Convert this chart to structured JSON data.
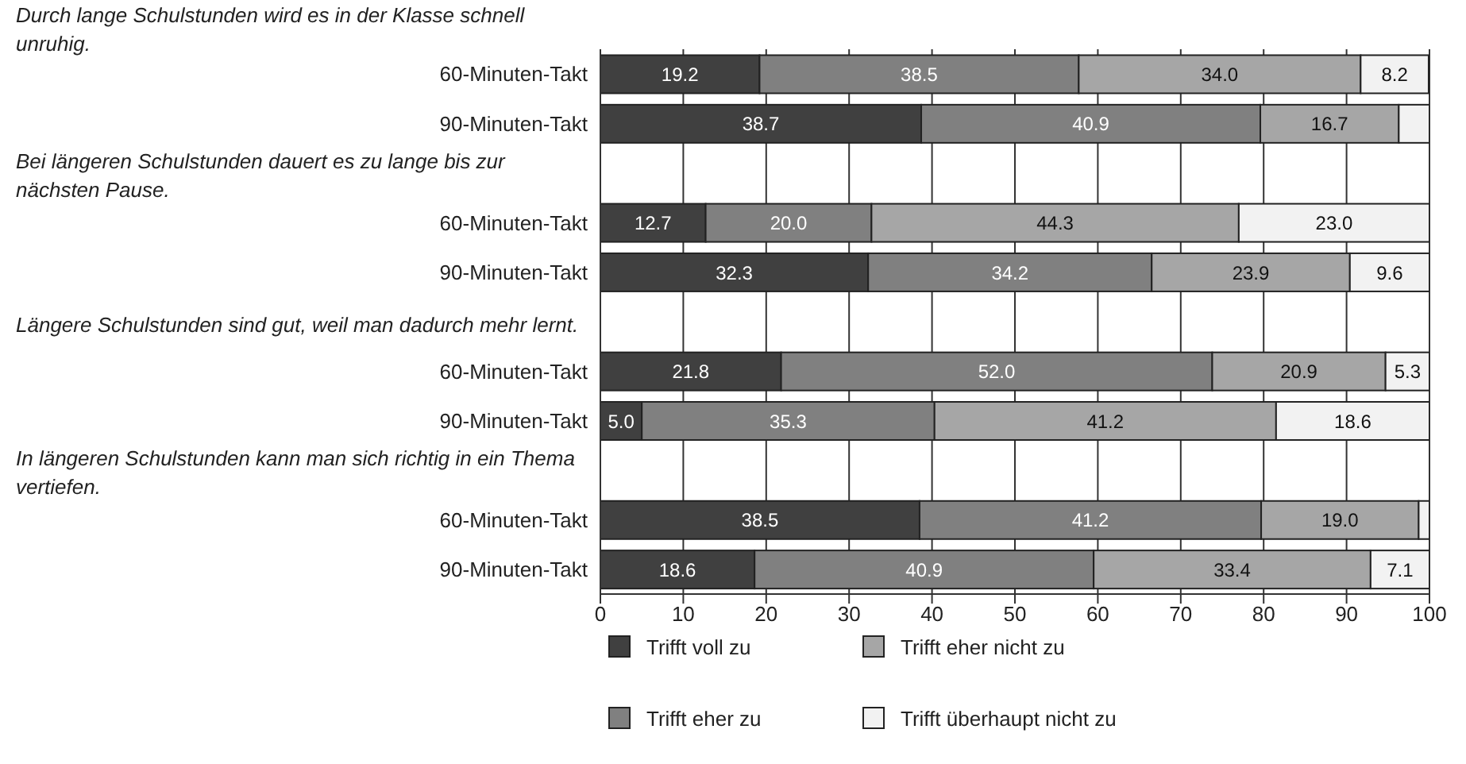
{
  "chart_data": {
    "type": "bar",
    "orientation": "horizontal",
    "stacked": true,
    "annotations": [
      "Durch lange Schulstunden wird es in der Klasse schnell unruhig.",
      "Bei längeren Schulstunden dauert es zu lange bis zur nächsten Pause.",
      "Längere Schulstunden sind gut, weil man dadurch mehr lernt.",
      "In längeren Schulstunden kann man sich richtig in ein Thema vertiefen."
    ],
    "categories": [
      "60-Minuten-Takt",
      "90-Minuten-Takt",
      null,
      "60-Minuten-Takt",
      "90-Minuten-Takt",
      null,
      "60-Minuten-Takt",
      "90-Minuten-Takt",
      null,
      "60-Minuten-Takt",
      "90-Minuten-Takt"
    ],
    "series": [
      {
        "name": "Trifft voll zu",
        "color": "#404040",
        "values": [
          19.2,
          38.7,
          null,
          12.7,
          32.3,
          null,
          21.8,
          5.0,
          null,
          38.5,
          18.6
        ],
        "value_labels": [
          "19.2",
          "38.7",
          null,
          "12.7",
          "32.3",
          null,
          "21.8",
          "5.0",
          null,
          "38.5",
          "18.6"
        ]
      },
      {
        "name": "Trifft eher zu",
        "color": "#808080",
        "values": [
          38.5,
          40.9,
          null,
          20.0,
          34.2,
          null,
          52.0,
          35.3,
          null,
          41.2,
          40.9
        ],
        "value_labels": [
          "38.5",
          "40.9",
          null,
          "20.0",
          "34.2",
          null,
          "52.0",
          "35.3",
          null,
          "41.2",
          "40.9"
        ]
      },
      {
        "name": "Trifft eher nicht zu",
        "color": "#a6a6a6",
        "values": [
          34.0,
          16.7,
          null,
          44.3,
          23.9,
          null,
          20.9,
          41.2,
          null,
          19.0,
          33.4
        ],
        "value_labels": [
          "34.0",
          "16.7",
          null,
          "44.3",
          "23.9",
          null,
          "20.9",
          "41.2",
          null,
          "19.0",
          "33.4"
        ]
      },
      {
        "name": "Trifft überhaupt nicht zu",
        "color": "#f2f2f2",
        "values": [
          8.2,
          3.7,
          null,
          23.0,
          9.6,
          null,
          5.3,
          18.6,
          null,
          1.3,
          7.1
        ],
        "value_labels": [
          "8.2",
          null,
          null,
          "23.0",
          "9.6",
          null,
          "5.3",
          "18.6",
          null,
          null,
          "7.1"
        ]
      }
    ],
    "xlim": [
      0,
      100
    ],
    "xticks": [
      0,
      10,
      20,
      30,
      40,
      50,
      60,
      70,
      80,
      90,
      100
    ],
    "grid": "x",
    "legend": "bottom"
  }
}
